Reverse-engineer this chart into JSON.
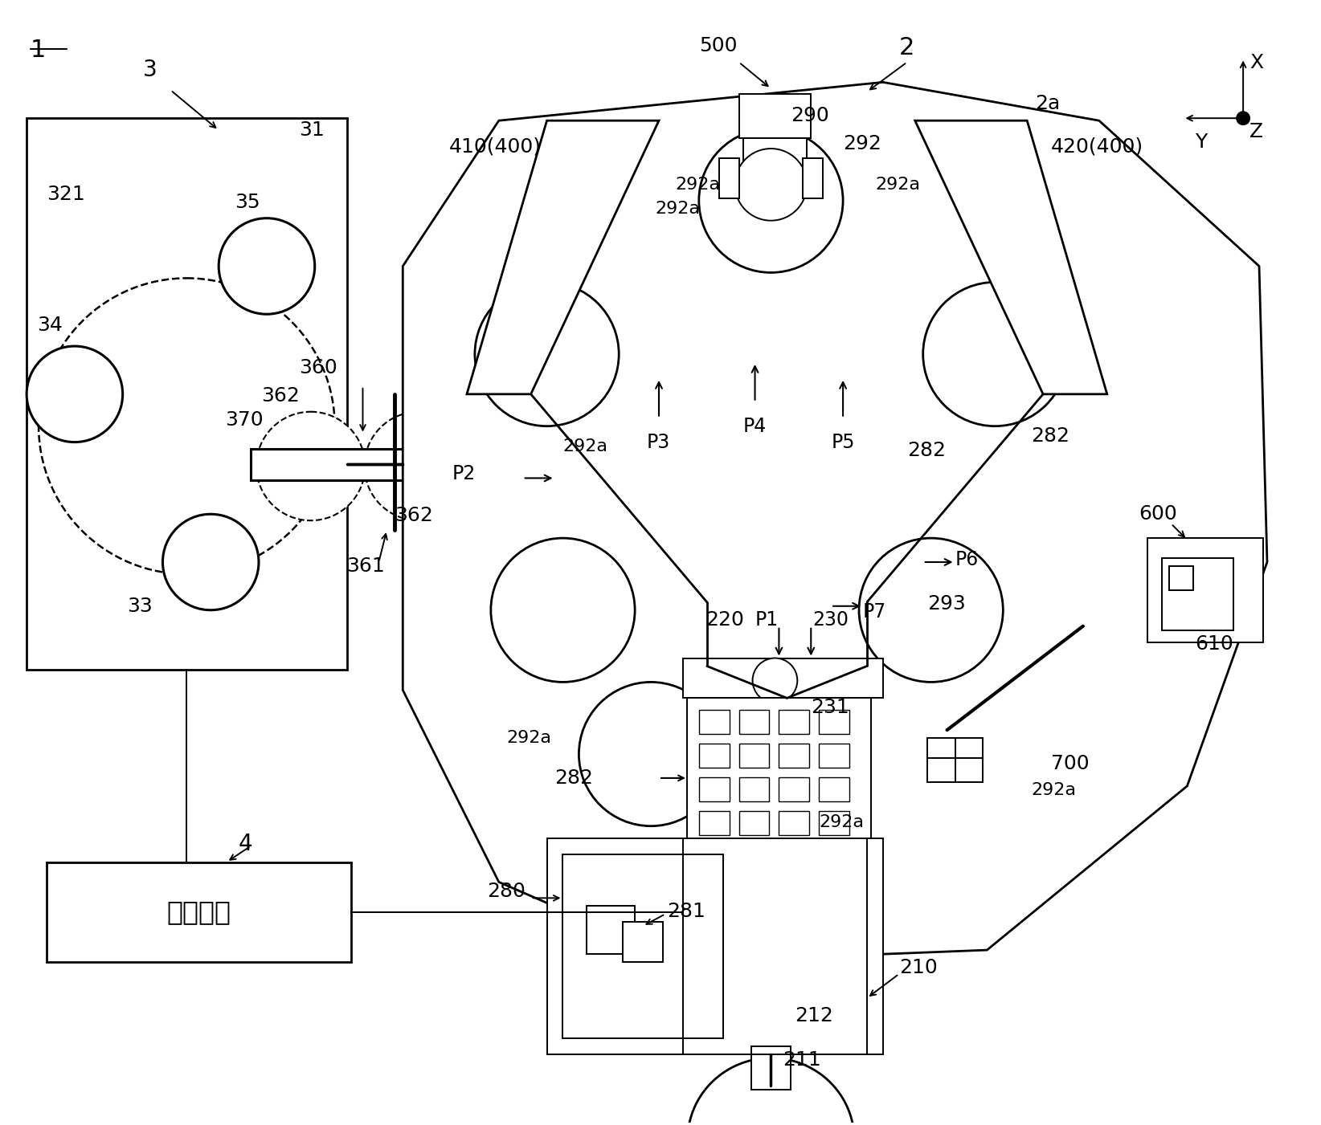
{
  "bg_color": "#ffffff",
  "lc": "#000000",
  "fig_width": 16.44,
  "fig_height": 14.01,
  "labels": {
    "1": "1",
    "2": "2",
    "2a": "2a",
    "3": "3",
    "4": "4",
    "31": "31",
    "33": "33",
    "34": "34",
    "35": "35",
    "321": "321",
    "360": "360",
    "361": "361",
    "362": "362",
    "370": "370",
    "210": "210",
    "211": "211",
    "212": "212",
    "220": "220",
    "230": "230",
    "231": "231",
    "280": "280",
    "281": "281",
    "282": "282",
    "290": "290",
    "292": "292",
    "292a": "292a",
    "293": "293",
    "410": "410(400)",
    "420": "420(400)",
    "500": "500",
    "600": "600",
    "610": "610",
    "700": "700",
    "P1": "P1",
    "P2": "P2",
    "P3": "P3",
    "P4": "P4",
    "P5": "P5",
    "P6": "P6",
    "P7": "P7",
    "control": "控制装置"
  }
}
